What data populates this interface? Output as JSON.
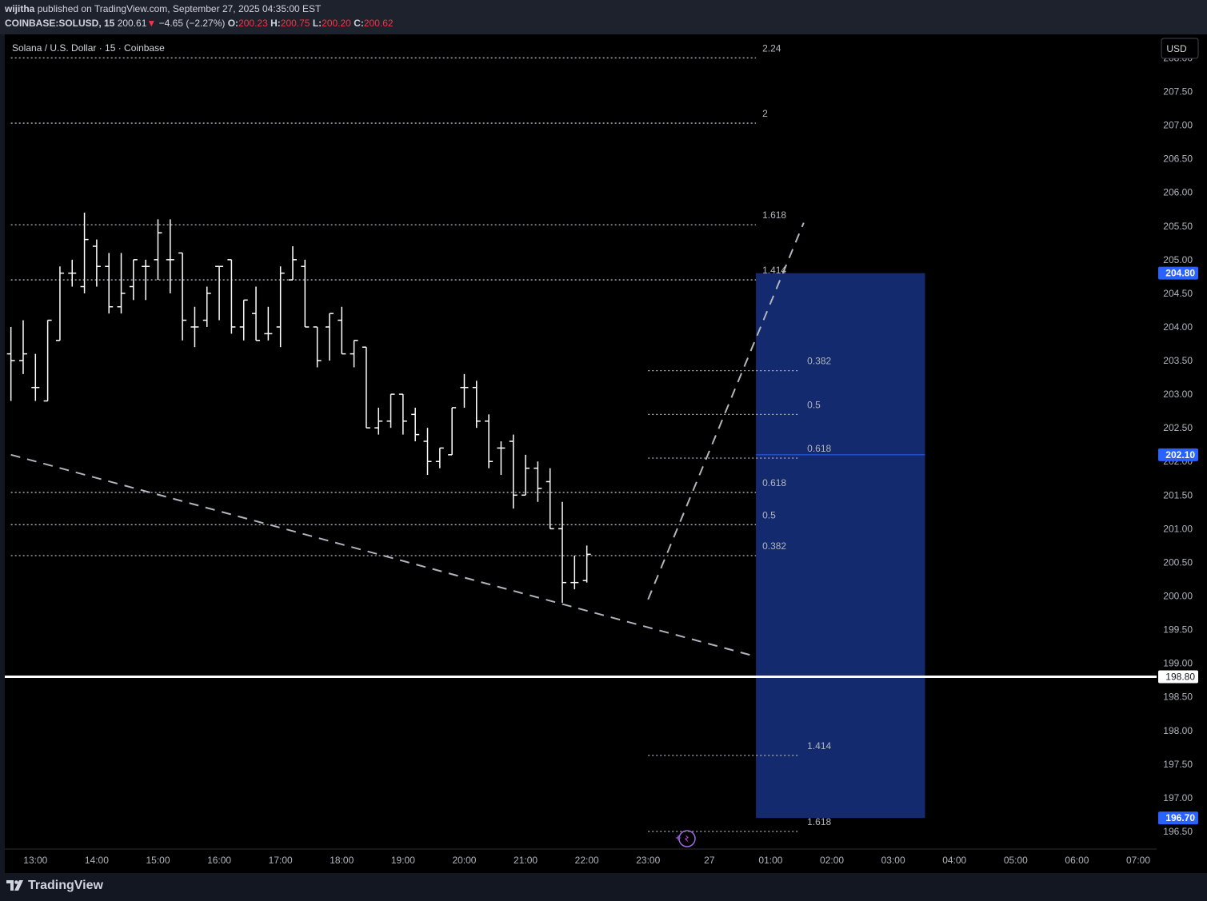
{
  "header": {
    "author": "wijitha",
    "published_text": "published on TradingView.com, September 27, 2025 04:35:00 EST",
    "symbol": "COINBASE:SOLUSD, 15",
    "last": "200.61",
    "change_arrow": "▼",
    "change": "−4.65 (−2.27%)",
    "open_label": "O:",
    "open": "200.23",
    "high_label": "H:",
    "high": "200.75",
    "low_label": "L:",
    "low": "200.20",
    "close_label": "C:",
    "close": "200.62"
  },
  "chart_title": "Solana / U.S. Dollar · 15 · Coinbase",
  "currency_button": "USD",
  "footer": {
    "brand": "TradingView"
  },
  "colors": {
    "background": "#000000",
    "bars": "#ffffff",
    "fib_lines": "#b2b5be",
    "fib_labels": "#b2b5be",
    "zone_fill": "#142a6e",
    "price_tag_blue": "#2962ff",
    "down": "#f23645"
  },
  "chart_data": {
    "type": "ohlc",
    "timeframe": "15",
    "y_range": [
      196.25,
      208.35
    ],
    "x_range_index": [
      -0.5,
      93.5
    ],
    "y_ticks": [
      "196.50",
      "197.00",
      "197.50",
      "198.00",
      "198.50",
      "199.00",
      "199.50",
      "200.00",
      "200.50",
      "201.00",
      "201.50",
      "202.00",
      "202.50",
      "203.00",
      "203.50",
      "204.00",
      "204.50",
      "205.00",
      "205.50",
      "206.00",
      "206.50",
      "207.00",
      "207.50",
      "208.00"
    ],
    "x_ticks": [
      {
        "i": 2,
        "label": "13:00"
      },
      {
        "i": 7,
        "label": "14:00"
      },
      {
        "i": 12,
        "label": "15:00"
      },
      {
        "i": 17,
        "label": "16:00"
      },
      {
        "i": 22,
        "label": "17:00"
      },
      {
        "i": 27,
        "label": "18:00"
      },
      {
        "i": 32,
        "label": "19:00"
      },
      {
        "i": 37,
        "label": "20:00"
      },
      {
        "i": 42,
        "label": "21:00"
      },
      {
        "i": 47,
        "label": "22:00"
      },
      {
        "i": 52,
        "label": "23:00"
      },
      {
        "i": 57,
        "label": "27"
      },
      {
        "i": 62,
        "label": "01:00"
      },
      {
        "i": 67,
        "label": "02:00"
      },
      {
        "i": 72,
        "label": "03:00"
      },
      {
        "i": 77,
        "label": "04:00"
      },
      {
        "i": 82,
        "label": "05:00"
      },
      {
        "i": 87,
        "label": "06:00"
      },
      {
        "i": 92,
        "label": "07:00"
      }
    ],
    "bars": [
      {
        "o": 203.6,
        "h": 204.0,
        "l": 202.9,
        "c": 203.5
      },
      {
        "o": 203.5,
        "h": 204.1,
        "l": 203.3,
        "c": 203.6
      },
      {
        "o": 203.1,
        "h": 203.6,
        "l": 202.9,
        "c": 203.1
      },
      {
        "o": 202.9,
        "h": 204.1,
        "l": 202.9,
        "c": 204.1
      },
      {
        "o": 203.8,
        "h": 204.9,
        "l": 203.8,
        "c": 204.8
      },
      {
        "o": 204.8,
        "h": 205.0,
        "l": 204.6,
        "c": 204.8
      },
      {
        "o": 204.6,
        "h": 205.7,
        "l": 204.5,
        "c": 205.3
      },
      {
        "o": 205.2,
        "h": 205.3,
        "l": 204.6,
        "c": 204.9
      },
      {
        "o": 204.9,
        "h": 205.1,
        "l": 204.2,
        "c": 204.3
      },
      {
        "o": 204.3,
        "h": 205.1,
        "l": 204.2,
        "c": 204.5
      },
      {
        "o": 204.6,
        "h": 205.0,
        "l": 204.4,
        "c": 205.0
      },
      {
        "o": 204.9,
        "h": 205.0,
        "l": 204.4,
        "c": 204.9
      },
      {
        "o": 205.0,
        "h": 205.6,
        "l": 204.7,
        "c": 205.4
      },
      {
        "o": 205.0,
        "h": 205.6,
        "l": 204.5,
        "c": 205.0
      },
      {
        "o": 205.1,
        "h": 205.1,
        "l": 203.8,
        "c": 204.1
      },
      {
        "o": 204.0,
        "h": 204.3,
        "l": 203.7,
        "c": 204.0
      },
      {
        "o": 204.1,
        "h": 204.6,
        "l": 204.0,
        "c": 204.5
      },
      {
        "o": 204.9,
        "h": 204.9,
        "l": 204.1,
        "c": 204.9
      },
      {
        "o": 205.0,
        "h": 205.0,
        "l": 203.9,
        "c": 204.0
      },
      {
        "o": 204.0,
        "h": 204.4,
        "l": 203.8,
        "c": 204.4
      },
      {
        "o": 204.2,
        "h": 204.6,
        "l": 203.8,
        "c": 203.8
      },
      {
        "o": 203.9,
        "h": 204.3,
        "l": 203.8,
        "c": 203.9
      },
      {
        "o": 204.0,
        "h": 204.9,
        "l": 203.7,
        "c": 204.8
      },
      {
        "o": 204.7,
        "h": 205.2,
        "l": 204.7,
        "c": 205.0
      },
      {
        "o": 204.9,
        "h": 205.0,
        "l": 204.0,
        "c": 204.0
      },
      {
        "o": 204.0,
        "h": 204.0,
        "l": 203.4,
        "c": 203.5
      },
      {
        "o": 204.0,
        "h": 204.2,
        "l": 203.5,
        "c": 204.2
      },
      {
        "o": 204.1,
        "h": 204.3,
        "l": 203.6,
        "c": 203.6
      },
      {
        "o": 203.6,
        "h": 203.8,
        "l": 203.4,
        "c": 203.8
      },
      {
        "o": 203.7,
        "h": 203.7,
        "l": 202.5,
        "c": 202.5
      },
      {
        "o": 202.5,
        "h": 202.8,
        "l": 202.4,
        "c": 202.6
      },
      {
        "o": 202.6,
        "h": 203.0,
        "l": 202.5,
        "c": 203.0
      },
      {
        "o": 203.0,
        "h": 203.0,
        "l": 202.4,
        "c": 202.6
      },
      {
        "o": 202.7,
        "h": 202.8,
        "l": 202.3,
        "c": 202.4
      },
      {
        "o": 202.3,
        "h": 202.5,
        "l": 201.8,
        "c": 202.0
      },
      {
        "o": 202.0,
        "h": 202.2,
        "l": 201.9,
        "c": 202.2
      },
      {
        "o": 202.1,
        "h": 202.8,
        "l": 202.1,
        "c": 202.8
      },
      {
        "o": 203.1,
        "h": 203.3,
        "l": 202.8,
        "c": 203.1
      },
      {
        "o": 203.1,
        "h": 203.2,
        "l": 202.5,
        "c": 202.6
      },
      {
        "o": 202.6,
        "h": 202.7,
        "l": 201.9,
        "c": 202.0
      },
      {
        "o": 202.2,
        "h": 202.3,
        "l": 201.8,
        "c": 202.2
      },
      {
        "o": 202.3,
        "h": 202.4,
        "l": 201.3,
        "c": 201.5
      },
      {
        "o": 201.5,
        "h": 202.1,
        "l": 201.5,
        "c": 201.9
      },
      {
        "o": 201.9,
        "h": 202.0,
        "l": 201.4,
        "c": 201.6
      },
      {
        "o": 201.7,
        "h": 201.9,
        "l": 201.0,
        "c": 201.0
      },
      {
        "o": 201.0,
        "h": 201.4,
        "l": 199.9,
        "c": 200.2
      },
      {
        "o": 200.2,
        "h": 200.6,
        "l": 200.1,
        "c": 200.2
      },
      {
        "o": 200.23,
        "h": 200.75,
        "l": 200.2,
        "c": 200.62
      }
    ],
    "bar_start_index": 0,
    "fib_left": {
      "x_from_index": 0,
      "x_to_index": 60.8,
      "levels": [
        {
          "label": "2.24",
          "price": 208.0
        },
        {
          "label": "2",
          "price": 207.03
        },
        {
          "label": "1.618",
          "price": 205.52
        },
        {
          "label": "1.414",
          "price": 204.7
        },
        {
          "label": "0.618",
          "price": 201.54
        },
        {
          "label": "0.5",
          "price": 201.06
        },
        {
          "label": "0.382",
          "price": 200.6
        }
      ]
    },
    "fib_right": {
      "x_from_index": 52.0,
      "x_to_index": 64.2,
      "levels": [
        {
          "label": "0.382",
          "price": 203.35
        },
        {
          "label": "0.5",
          "price": 202.7
        },
        {
          "label": "0.618",
          "price": 202.05
        },
        {
          "label": "1.414",
          "price": 197.63
        },
        {
          "label": "1.618",
          "price": 196.5
        }
      ]
    },
    "zone": {
      "x_from_index": 60.8,
      "x_to_index": 74.6,
      "price_top": 204.8,
      "price_mid": 202.1,
      "price_bottom": 196.7
    },
    "horizontal_line": {
      "price": 198.8
    },
    "trendlines": [
      {
        "name": "descending",
        "x1": 0,
        "y1": 202.1,
        "x2": 60.8,
        "y2": 199.1
      },
      {
        "name": "ascending",
        "x1": 52.0,
        "y1": 199.95,
        "x2": 64.7,
        "y2": 205.55
      }
    ],
    "price_tags": [
      {
        "price": 204.8,
        "label": "204.80",
        "style": "blue"
      },
      {
        "price": 202.1,
        "label": "202.10",
        "style": "blue"
      },
      {
        "price": 198.8,
        "label": "198.80",
        "style": "white"
      },
      {
        "price": 196.7,
        "label": "196.70",
        "style": "blue"
      }
    ]
  }
}
